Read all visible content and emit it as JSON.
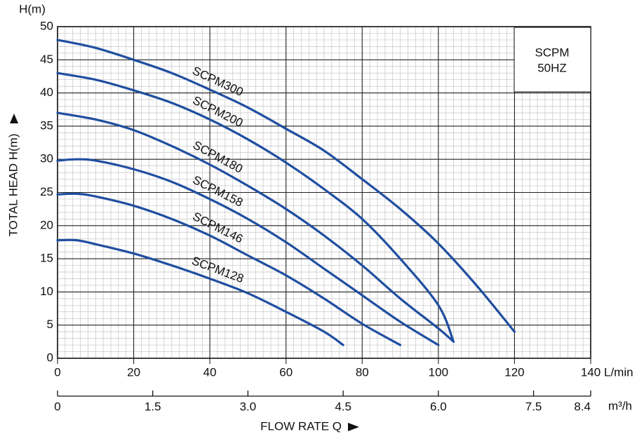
{
  "chart_data": {
    "type": "line",
    "y_unit": "H(m)",
    "y_label": "TOTAL HEAD H(m)",
    "x_label": "FLOW RATE Q",
    "x_unit": "L/min",
    "x2_unit": "m³/h",
    "annotation": [
      "SCPM",
      "50HZ"
    ],
    "xlim": [
      0,
      140
    ],
    "xticks": [
      0,
      20,
      40,
      60,
      80,
      100,
      120,
      140
    ],
    "x2lim": [
      0,
      8.4
    ],
    "x2ticks": [
      0,
      1.5,
      {
        "value": 3,
        "label": "3.0"
      },
      4.5,
      {
        "value": 6,
        "label": "6.0"
      },
      7.5,
      8.4
    ],
    "ylim": [
      0,
      50
    ],
    "yticks": [
      0,
      5,
      10,
      15,
      20,
      25,
      30,
      35,
      40,
      45,
      50
    ],
    "grid": true,
    "minor_divisions": 5,
    "series": [
      {
        "name": "SCPM300",
        "color": "#1f4ea0",
        "x": [
          0,
          10,
          20,
          30,
          40,
          50,
          60,
          70,
          80,
          90,
          100,
          110,
          120
        ],
        "values": [
          48,
          46.8,
          45,
          43,
          40.5,
          37.8,
          34.6,
          31.3,
          27,
          22.5,
          17.3,
          11,
          4
        ]
      },
      {
        "name": "SCPM200",
        "color": "#1f4ea0",
        "x": [
          0,
          10,
          20,
          30,
          40,
          50,
          60,
          70,
          80,
          90,
          100,
          104
        ],
        "values": [
          43,
          42,
          40.4,
          38.5,
          36,
          33,
          29.5,
          25.5,
          21,
          15,
          8,
          2.5
        ]
      },
      {
        "name": "SCPM180",
        "color": "#1f4ea0",
        "x": [
          0,
          10,
          20,
          30,
          40,
          50,
          60,
          70,
          80,
          90,
          100,
          104
        ],
        "values": [
          37,
          36,
          34.4,
          32,
          29.2,
          26,
          22.5,
          18.5,
          14,
          9,
          4.5,
          2.5
        ]
      },
      {
        "name": "SCPM158",
        "color": "#1f4ea0",
        "x": [
          0,
          5,
          10,
          20,
          30,
          40,
          50,
          60,
          70,
          80,
          90,
          100
        ],
        "values": [
          29.8,
          30,
          29.8,
          28.5,
          26.6,
          24,
          21,
          17.5,
          13.5,
          9.5,
          5.5,
          2
        ]
      },
      {
        "name": "SCPM146",
        "color": "#1f4ea0",
        "x": [
          0,
          5,
          10,
          20,
          30,
          40,
          50,
          60,
          70,
          80,
          90
        ],
        "values": [
          24.7,
          24.8,
          24.4,
          23,
          21,
          18.5,
          15.5,
          12.5,
          9,
          5.2,
          2
        ]
      },
      {
        "name": "SCPM128",
        "color": "#1f4ea0",
        "x": [
          0,
          5,
          10,
          20,
          30,
          40,
          50,
          60,
          70,
          75
        ],
        "values": [
          17.8,
          17.8,
          17.2,
          15.8,
          14,
          12,
          9.8,
          7,
          4,
          2
        ]
      }
    ]
  }
}
